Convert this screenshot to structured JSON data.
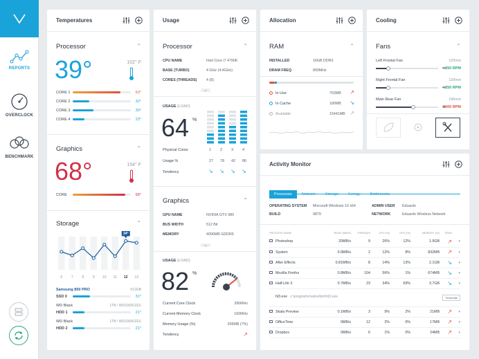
{
  "sidebar": {
    "reports": "REPORTS",
    "overclock": "OVERCLOCK",
    "benchmark": "BENCHMARK"
  },
  "temps": {
    "title": "Temperatures",
    "processor": {
      "title": "Processor",
      "value": "39°",
      "f": "102° F",
      "cores": [
        {
          "label": "CORE 1",
          "val": "63°",
          "pct": 0.82,
          "color": "#e0503a"
        },
        {
          "label": "CORE 2",
          "val": "32°",
          "pct": 0.28,
          "color": "#1aa3d9"
        },
        {
          "label": "CORE 3",
          "val": "39°",
          "pct": 0.36,
          "color": "#1aa3d9"
        },
        {
          "label": "CORE 4",
          "val": "23°",
          "pct": 0.2,
          "color": "#1aa3d9"
        }
      ]
    },
    "graphics": {
      "title": "Graphics",
      "value": "68°",
      "f": "154° F",
      "core_label": "CORE",
      "core_val": "68°",
      "pct": 0.9
    },
    "storage": {
      "title": "Storage",
      "badge": "34°",
      "xlabels": [
        "6",
        "7",
        "8",
        "9",
        "10",
        "11",
        "12",
        "13"
      ],
      "values": [
        40,
        36,
        44,
        33,
        48,
        35,
        52,
        50
      ],
      "drives": [
        {
          "name": "Samsung 850 PRO",
          "size": "512GB",
          "label": "SSD 0",
          "val": "31°",
          "pct": 0.3
        },
        {
          "name": "WD Black",
          "size": "1TB / WD1003FZEX",
          "label": "HDD 1",
          "val": "21°",
          "pct": 0.2
        },
        {
          "name": "WD Black",
          "size": "1TB / WD1003FZEX",
          "label": "HDD 2",
          "val": "21°",
          "pct": 0.2
        }
      ]
    }
  },
  "usage": {
    "title": "Usage",
    "processor": {
      "title": "Processor",
      "rows": [
        {
          "k": "CPU NAME",
          "v": "Intel Core i7 4790K"
        },
        {
          "k": "BASE (TURBO)",
          "v": "4 GHz (4.4GHz)"
        },
        {
          "k": "CORES (THREADS)",
          "v": "4 (8)"
        }
      ],
      "usage_label": "USAGE",
      "usage_unit": "(LOAD)",
      "value": "64",
      "pct": "%",
      "phys_label": "Physical Cores",
      "cores": [
        "1",
        "2",
        "3",
        "4"
      ],
      "usage_row": "Usage %",
      "usage_vals": [
        "27",
        "78",
        "42",
        "86"
      ],
      "tendency": "Tendency",
      "bars": [
        [
          3,
          4,
          2
        ],
        [
          6,
          7,
          8
        ],
        [
          4,
          5,
          5
        ],
        [
          8,
          9,
          9
        ]
      ]
    },
    "graphics": {
      "title": "Graphics",
      "rows": [
        {
          "k": "GPU NAME",
          "v": "NVIDIA GTX 980"
        },
        {
          "k": "BUS WIDTH",
          "v": "512 Bit"
        },
        {
          "k": "MEMORY",
          "v": "4096MB GDDR5"
        }
      ],
      "usage_label": "USAGE",
      "usage_unit": "(LOAD)",
      "value": "82",
      "pct": "%",
      "stats": [
        {
          "k": "Current Core Clock",
          "v": "390MHz"
        },
        {
          "k": "Current Memory Clock",
          "v": "160MHz"
        },
        {
          "k": "Memory Usage (%)",
          "v": "306MB (7%)"
        },
        {
          "k": "Tendency",
          "v": ""
        }
      ]
    }
  },
  "alloc": {
    "title": "Allocation",
    "ram": "RAM",
    "rows": [
      {
        "k": "INSTALLED",
        "v": "16GB DDR3"
      },
      {
        "k": "DRAM FREQ",
        "v": "800MHz"
      }
    ],
    "items": [
      {
        "k": "In Use",
        "v": "763MB",
        "c": "#e0503a"
      },
      {
        "k": "In Cache",
        "v": "180MB",
        "c": "#1aa3d9"
      },
      {
        "k": "Available",
        "v": "15441MB",
        "c": "#aab2ba"
      }
    ]
  },
  "cooling": {
    "title": "Cooling",
    "fans": "Fans",
    "items": [
      {
        "name": "Left Frontal Fan",
        "size": "120mm",
        "rpm": "250 RPM",
        "pct": 0.2,
        "c": "#2aa876"
      },
      {
        "name": "Right Frontal Fan",
        "size": "120mm",
        "rpm": "250 RPM",
        "pct": 0.2,
        "c": "#2aa876"
      },
      {
        "name": "Main Rear Fan",
        "size": "240mm",
        "rpm": "1000 RPM",
        "pct": 0.6,
        "c": "#e0503a"
      }
    ]
  },
  "activity": {
    "title": "Activity Monitor",
    "tabs": [
      "Processes",
      "Network",
      "Storage",
      "Energy",
      "Bottlenecks"
    ],
    "info": [
      {
        "k": "OPERATING SYSTEM",
        "v": "Microsoft Windows 10 x64",
        "k2": "ADMIN USER",
        "v2": "Eduardo"
      },
      {
        "k": "BUILD",
        "v": "9879",
        "k2": "NETWORK",
        "v2": "Eduardo Wireless Network"
      }
    ],
    "cols": [
      "PROCESS NAME",
      "READ (MB/S)",
      "THREADS",
      "CPU (%)",
      "GPU (%)",
      "MEMORY (%)",
      "TEND"
    ],
    "rows": [
      {
        "name": "Photoshop",
        "read": "20MB/s",
        "th": "9",
        "cpu": "26%",
        "gpu": "12%",
        "mem": "1.9GB",
        "c": "#e0503a"
      },
      {
        "name": "System",
        "read": "0.9MB/s",
        "th": "2",
        "cpu": "12%",
        "gpu": "8%",
        "mem": "832MB",
        "c": "#e0503a"
      },
      {
        "name": "After Effects",
        "read": "0.81MB/s",
        "th": "8",
        "cpu": "14%",
        "gpu": "13%",
        "mem": "2.1GB",
        "c": "#1aa3d9"
      },
      {
        "name": "Mozilla Firefox",
        "read": "0.8MB/s",
        "th": "104",
        "cpu": "56%",
        "gpu": "1%",
        "mem": "674MB",
        "c": "#1aa3d9"
      },
      {
        "name": "Half-Life 3",
        "read": "0.7MB/s",
        "th": "23",
        "cpu": "34%",
        "gpu": "69%",
        "mem": "3.7GB",
        "c": "#1aa3d9"
      }
    ],
    "expanded": "hl3.exe",
    "path": "c:\\programs\\valve\\bin\\hl3.exe",
    "term": "Terminate",
    "rows2": [
      {
        "name": "Skala Preview",
        "read": "0.1MB/s",
        "th": "3",
        "cpu": "9%",
        "gpu": "2%",
        "mem": "21MB",
        "c": "#e0503a"
      },
      {
        "name": "OfficeTime",
        "read": "0MB/s",
        "th": "12",
        "cpu": "2%",
        "gpu": "0%",
        "mem": "17MB",
        "c": "#e0503a"
      },
      {
        "name": "Dropbox",
        "read": "0MB/s",
        "th": "6",
        "cpu": "1%",
        "gpu": "0%",
        "mem": "24MB",
        "c": "#e0503a"
      }
    ]
  }
}
